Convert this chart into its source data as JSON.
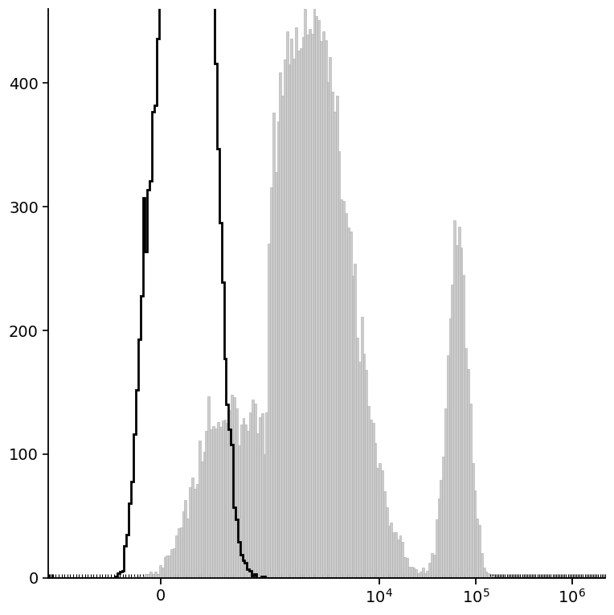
{
  "background_color": "#ffffff",
  "ylim": [
    0,
    460
  ],
  "yticks": [
    0,
    100,
    200,
    300,
    400
  ],
  "xscale_linthresh": 700,
  "xlim_left": -800,
  "xlim_right": 2200000,
  "xtick_positions": [
    0,
    10000,
    100000,
    1000000
  ],
  "figure_size": [
    7.64,
    7.65
  ],
  "dpi": 100,
  "linewidth_black": 2.0,
  "gray_fill_color": "#cccccc",
  "gray_edge_color": "#aaaaaa",
  "black_line_color": "#000000"
}
